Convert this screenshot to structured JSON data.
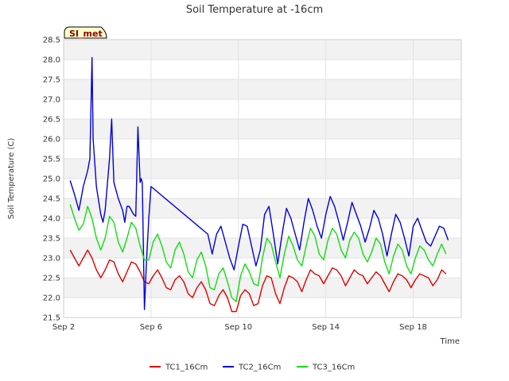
{
  "chart_data": {
    "type": "line",
    "title": "Soil Temperature at -16cm",
    "xlabel": "Time",
    "ylabel": "Soil Temperature (C)",
    "badge": "SI_met",
    "xlim": [
      2.0,
      20.2
    ],
    "ylim": [
      21.5,
      28.5
    ],
    "x_ticks": [
      {
        "value": 2,
        "label": "Sep 2"
      },
      {
        "value": 6,
        "label": "Sep 6"
      },
      {
        "value": 10,
        "label": "Sep 10"
      },
      {
        "value": 14,
        "label": "Sep 14"
      },
      {
        "value": 18,
        "label": "Sep 18"
      }
    ],
    "y_ticks": [
      "21.5",
      "22.0",
      "22.5",
      "23.0",
      "23.5",
      "24.0",
      "24.5",
      "25.0",
      "25.5",
      "26.0",
      "26.5",
      "27.0",
      "27.5",
      "28.0",
      "28.5"
    ],
    "grid": true,
    "legend_position": "bottom",
    "series": [
      {
        "name": "TC1_16Cm",
        "color": "#e00000",
        "x": [
          2.3,
          2.5,
          2.7,
          2.9,
          3.1,
          3.3,
          3.5,
          3.7,
          3.9,
          4.1,
          4.3,
          4.5,
          4.7,
          4.9,
          5.1,
          5.3,
          5.5,
          5.7,
          5.9,
          6.1,
          6.3,
          6.5,
          6.7,
          6.9,
          7.1,
          7.3,
          7.5,
          7.7,
          7.9,
          8.1,
          8.3,
          8.5,
          8.7,
          8.9,
          9.1,
          9.3,
          9.5,
          9.7,
          9.9,
          10.1,
          10.3,
          10.5,
          10.7,
          10.9,
          11.1,
          11.3,
          11.5,
          11.7,
          11.9,
          12.1,
          12.3,
          12.5,
          12.7,
          12.9,
          13.1,
          13.3,
          13.5,
          13.7,
          13.9,
          14.1,
          14.3,
          14.5,
          14.7,
          14.9,
          15.1,
          15.3,
          15.5,
          15.7,
          15.9,
          16.1,
          16.3,
          16.5,
          16.7,
          16.9,
          17.1,
          17.3,
          17.5,
          17.7,
          17.9,
          18.1,
          18.3,
          18.5,
          18.7,
          18.9,
          19.1,
          19.3,
          19.5
        ],
        "y": [
          23.2,
          23.0,
          22.8,
          23.0,
          23.2,
          23.0,
          22.7,
          22.5,
          22.7,
          22.95,
          22.9,
          22.6,
          22.4,
          22.65,
          22.9,
          22.85,
          22.65,
          22.4,
          22.35,
          22.55,
          22.7,
          22.5,
          22.25,
          22.2,
          22.45,
          22.55,
          22.4,
          22.1,
          22.0,
          22.25,
          22.4,
          22.2,
          21.85,
          21.8,
          22.05,
          22.2,
          22.0,
          21.65,
          21.65,
          22.05,
          22.2,
          22.1,
          21.8,
          21.85,
          22.3,
          22.55,
          22.5,
          22.1,
          21.85,
          22.25,
          22.55,
          22.5,
          22.4,
          22.15,
          22.45,
          22.7,
          22.6,
          22.55,
          22.35,
          22.55,
          22.75,
          22.7,
          22.55,
          22.3,
          22.5,
          22.7,
          22.6,
          22.55,
          22.35,
          22.5,
          22.65,
          22.55,
          22.35,
          22.15,
          22.4,
          22.6,
          22.55,
          22.45,
          22.25,
          22.45,
          22.6,
          22.55,
          22.5,
          22.3,
          22.45,
          22.7,
          22.6
        ]
      },
      {
        "name": "TC2_16Cm",
        "color": "#0000dd",
        "x": [
          2.3,
          2.5,
          2.7,
          2.8,
          2.9,
          3.1,
          3.2,
          3.3,
          3.35,
          3.5,
          3.7,
          3.8,
          3.9,
          4.1,
          4.2,
          4.3,
          4.35,
          4.5,
          4.7,
          4.8,
          4.9,
          5.0,
          5.1,
          5.2,
          5.3,
          5.4,
          5.5,
          5.55,
          5.6,
          5.7,
          5.8,
          5.9,
          6.0,
          8.6,
          8.8,
          9.0,
          9.2,
          9.4,
          9.6,
          9.8,
          10.0,
          10.2,
          10.4,
          10.6,
          10.8,
          11.0,
          11.2,
          11.4,
          11.6,
          11.8,
          12.0,
          12.2,
          12.4,
          12.6,
          12.8,
          13.0,
          13.2,
          13.4,
          13.6,
          13.8,
          14.0,
          14.2,
          14.4,
          14.6,
          14.8,
          15.0,
          15.2,
          15.4,
          15.6,
          15.8,
          16.0,
          16.2,
          16.4,
          16.6,
          16.8,
          17.0,
          17.2,
          17.4,
          17.6,
          17.8,
          18.0,
          18.2,
          18.4,
          18.6,
          18.8,
          19.0,
          19.2,
          19.4,
          19.6
        ],
        "y": [
          24.95,
          24.6,
          24.2,
          24.5,
          24.8,
          25.2,
          25.5,
          28.05,
          26.0,
          24.8,
          24.1,
          23.9,
          24.2,
          25.5,
          26.5,
          24.9,
          24.8,
          24.5,
          24.2,
          23.9,
          24.3,
          24.3,
          24.2,
          24.1,
          24.05,
          26.3,
          24.9,
          25.0,
          24.9,
          21.7,
          23.0,
          24.0,
          24.8,
          23.6,
          23.1,
          23.6,
          23.8,
          23.4,
          23.0,
          22.7,
          23.3,
          23.85,
          23.8,
          23.3,
          22.8,
          23.2,
          24.1,
          24.3,
          23.6,
          22.85,
          23.6,
          24.25,
          24.0,
          23.6,
          23.2,
          23.9,
          24.5,
          24.2,
          23.8,
          23.5,
          24.1,
          24.55,
          24.3,
          23.9,
          23.45,
          23.9,
          24.4,
          24.1,
          23.8,
          23.4,
          23.75,
          24.2,
          24.0,
          23.6,
          23.05,
          23.6,
          24.1,
          23.9,
          23.5,
          23.05,
          23.8,
          24.0,
          23.7,
          23.4,
          23.3,
          23.55,
          23.8,
          23.75,
          23.45
        ]
      },
      {
        "name": "TC3_16Cm",
        "color": "#11dd11",
        "x": [
          2.3,
          2.5,
          2.7,
          2.9,
          3.1,
          3.3,
          3.5,
          3.7,
          3.9,
          4.1,
          4.3,
          4.5,
          4.7,
          4.9,
          5.1,
          5.3,
          5.5,
          5.7,
          5.9,
          6.1,
          6.3,
          6.5,
          6.7,
          6.9,
          7.1,
          7.3,
          7.5,
          7.7,
          7.9,
          8.1,
          8.3,
          8.5,
          8.7,
          8.9,
          9.1,
          9.3,
          9.5,
          9.7,
          9.9,
          10.1,
          10.3,
          10.5,
          10.7,
          10.9,
          11.1,
          11.3,
          11.5,
          11.7,
          11.9,
          12.1,
          12.3,
          12.5,
          12.7,
          12.9,
          13.1,
          13.3,
          13.5,
          13.7,
          13.9,
          14.1,
          14.3,
          14.5,
          14.7,
          14.9,
          15.1,
          15.3,
          15.5,
          15.7,
          15.9,
          16.1,
          16.3,
          16.5,
          16.7,
          16.9,
          17.1,
          17.3,
          17.5,
          17.7,
          17.9,
          18.1,
          18.3,
          18.5,
          18.7,
          18.9,
          19.1,
          19.3,
          19.5
        ],
        "y": [
          24.35,
          24.0,
          23.7,
          23.85,
          24.3,
          24.0,
          23.5,
          23.2,
          23.5,
          24.05,
          23.9,
          23.4,
          23.15,
          23.5,
          23.9,
          23.75,
          23.3,
          22.95,
          22.95,
          23.4,
          23.6,
          23.3,
          22.9,
          22.75,
          23.2,
          23.4,
          23.1,
          22.65,
          22.5,
          22.95,
          23.15,
          22.8,
          22.25,
          22.2,
          22.6,
          22.75,
          22.4,
          22.0,
          21.9,
          22.55,
          22.85,
          22.65,
          22.35,
          22.3,
          23.0,
          23.5,
          23.35,
          22.9,
          22.5,
          23.1,
          23.55,
          23.3,
          22.95,
          22.8,
          23.3,
          23.75,
          23.55,
          23.1,
          22.95,
          23.45,
          23.75,
          23.6,
          23.2,
          23.0,
          23.45,
          23.65,
          23.5,
          23.1,
          22.9,
          23.15,
          23.5,
          23.35,
          22.9,
          22.6,
          23.05,
          23.35,
          23.2,
          22.8,
          22.6,
          23.0,
          23.3,
          23.2,
          22.95,
          22.8,
          23.1,
          23.35,
          23.1
        ]
      }
    ]
  }
}
